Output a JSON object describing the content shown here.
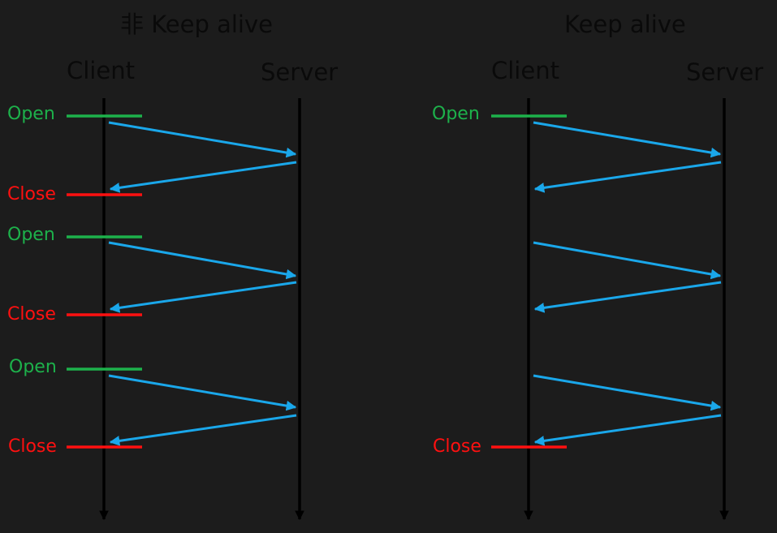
{
  "colors": {
    "background": "#1c1c1c",
    "heading_text": "#0a0a0a",
    "timeline": "#000000",
    "message_arrow": "#1aa7ea",
    "open": "#1db14b",
    "close": "#ff1010"
  },
  "panels": [
    {
      "title": "非 Keep alive",
      "client_label": "Client",
      "server_label": "Server",
      "exchanges": [
        {
          "open": "Open",
          "close": "Close"
        },
        {
          "open": "Open",
          "close": "Close"
        },
        {
          "open": "Open",
          "close": "Close"
        }
      ]
    },
    {
      "title": "Keep alive",
      "client_label": "Client",
      "server_label": "Server",
      "exchanges": [
        {
          "open": "Open",
          "close": ""
        },
        {
          "open": "",
          "close": ""
        },
        {
          "open": "",
          "close": "Close"
        }
      ]
    }
  ]
}
